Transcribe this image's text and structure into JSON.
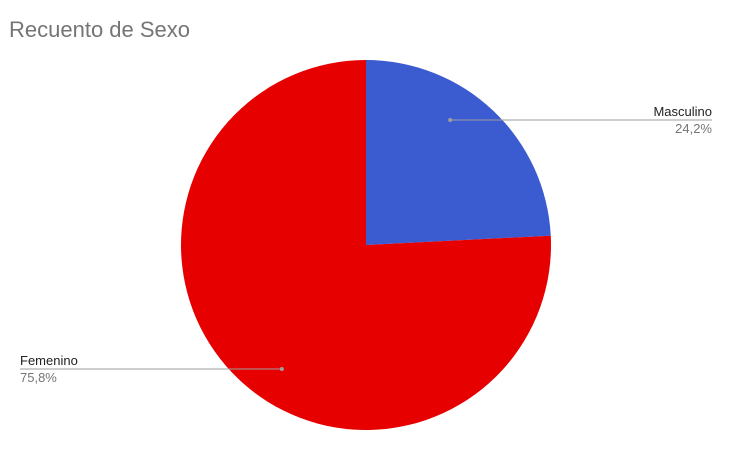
{
  "chart_data": {
    "type": "pie",
    "title": "Recuento de Sexo",
    "slices": [
      {
        "name": "Masculino",
        "value": 24.2,
        "label": "24,2%",
        "color": "#3b5bd1"
      },
      {
        "name": "Femenino",
        "value": 75.8,
        "label": "75,8%",
        "color": "#e60000"
      }
    ],
    "start_angle": "12 o'clock",
    "direction": "clockwise",
    "legend": "none",
    "label_style": "leader lines"
  }
}
